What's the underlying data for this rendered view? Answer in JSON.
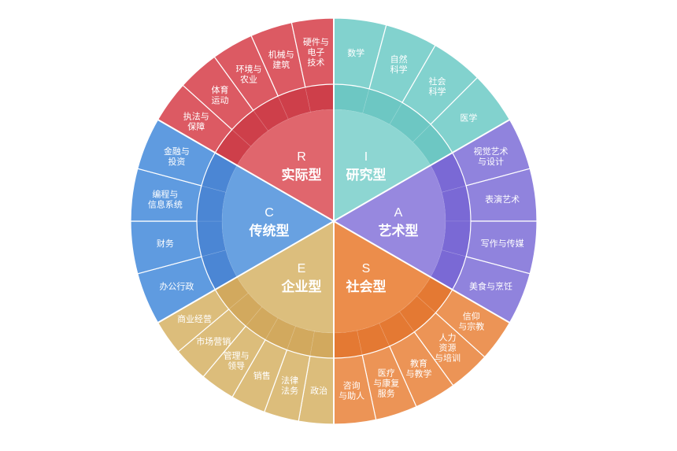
{
  "types": [
    {
      "letter": "I",
      "name": "研究型",
      "colors": {
        "core": "#8dd6d2",
        "ring": "#6dc7c3",
        "outer": "#82d2ce"
      },
      "subs": [
        [
          "数学"
        ],
        [
          "自然",
          "科学"
        ],
        [
          "社会",
          "科学"
        ],
        [
          "医学"
        ]
      ]
    },
    {
      "letter": "A",
      "name": "艺术型",
      "colors": {
        "core": "#9788df",
        "ring": "#7a69d5",
        "outer": "#9083dd"
      },
      "subs": [
        [
          "视觉艺术",
          "与设计"
        ],
        [
          "表演艺术"
        ],
        [
          "写作与传媒"
        ],
        [
          "美食与烹饪"
        ]
      ]
    },
    {
      "letter": "S",
      "name": "社会型",
      "colors": {
        "core": "#ec8d4b",
        "ring": "#e47933",
        "outer": "#ec9456"
      },
      "subs": [
        [
          "信仰",
          "与宗教"
        ],
        [
          "人力",
          "资源",
          "与培训"
        ],
        [
          "教育",
          "与教学"
        ],
        [
          "医疗",
          "与康复",
          "服务"
        ],
        [
          "咨询",
          "与助人"
        ]
      ]
    },
    {
      "letter": "E",
      "name": "企业型",
      "colors": {
        "core": "#dcbe7d",
        "ring": "#d2a95e",
        "outer": "#dcbd7b"
      },
      "subs": [
        [
          "政治"
        ],
        [
          "法律",
          "法务"
        ],
        [
          "销售"
        ],
        [
          "管理与",
          "领导"
        ],
        [
          "市场营销"
        ],
        [
          "商业经营"
        ]
      ]
    },
    {
      "letter": "C",
      "name": "传统型",
      "colors": {
        "core": "#68a1e1",
        "ring": "#4b86d4",
        "outer": "#5f9be0"
      },
      "subs": [
        [
          "办公行政"
        ],
        [
          "财务"
        ],
        [
          "编程与",
          "信息系统"
        ],
        [
          "金融与",
          "投资"
        ]
      ]
    },
    {
      "letter": "R",
      "name": "实际型",
      "colors": {
        "core": "#e0666d",
        "ring": "#ce3f4a",
        "outer": "#dc5a63"
      },
      "subs": [
        [
          "执法与",
          "保障"
        ],
        [
          "体育",
          "运动"
        ],
        [
          "环境与",
          "农业"
        ],
        [
          "机械与",
          "建筑"
        ],
        [
          "硬件与",
          "电子",
          "技术"
        ]
      ]
    }
  ]
}
